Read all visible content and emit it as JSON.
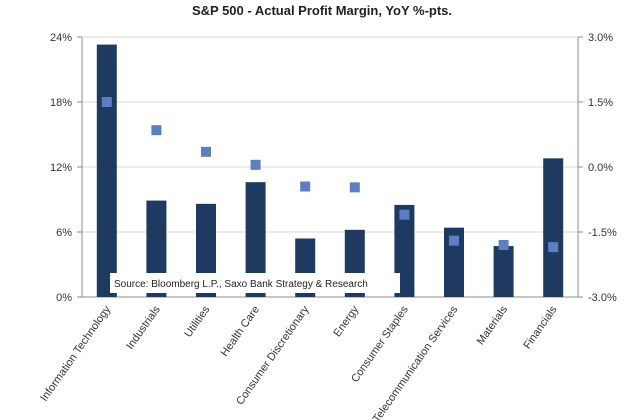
{
  "chart_data": {
    "type": "bar",
    "title": "S&P 500  - Actual Profit Margin, YoY %-pts.",
    "source_note": "Source: Bloomberg L.P., Saxo Bank Strategy & Research",
    "categories": [
      "Information Technology",
      "Industrials",
      "Utilities",
      "Health Care",
      "Consumer Discretionary",
      "Energy",
      "Consumer Staples",
      "Telecommunication Services",
      "Materials",
      "Financials"
    ],
    "series": [
      {
        "type": "bar",
        "axis": "left",
        "values": [
          23.3,
          8.9,
          8.6,
          10.6,
          5.4,
          6.2,
          8.5,
          6.4,
          4.7,
          12.8
        ],
        "color": "#1f3a60"
      },
      {
        "type": "scatter",
        "axis": "right",
        "values": [
          1.5,
          0.85,
          0.35,
          0.05,
          -0.45,
          -0.47,
          -1.1,
          -1.7,
          -1.8,
          -1.85
        ],
        "color": "#5b7fc2"
      }
    ],
    "y_left": {
      "range": [
        0,
        24
      ],
      "ticks": [
        "0%",
        "6%",
        "12%",
        "18%",
        "24%"
      ],
      "tick_values": [
        0,
        6,
        12,
        18,
        24
      ]
    },
    "y_right": {
      "range": [
        -3,
        3
      ],
      "ticks": [
        "-3.0%",
        "-1.5%",
        "0.0%",
        "1.5%",
        "3.0%"
      ],
      "tick_values": [
        -3,
        -1.5,
        0,
        1.5,
        3
      ]
    },
    "grid": true,
    "legend": "none"
  }
}
